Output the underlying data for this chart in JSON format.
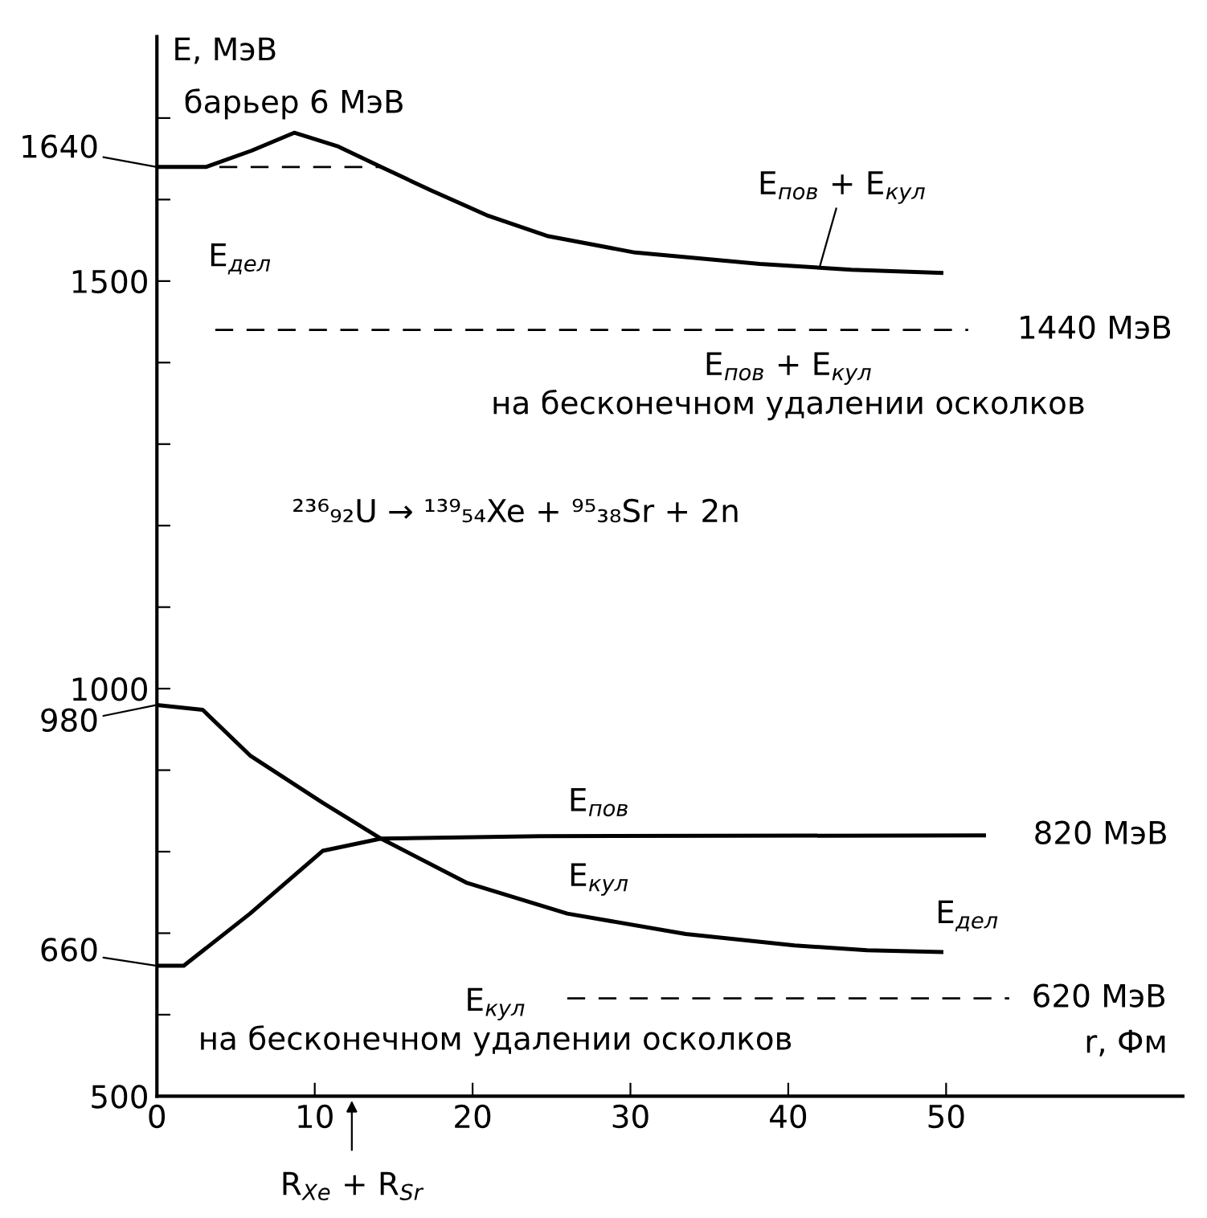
{
  "chart_data": {
    "type": "line",
    "xlabel": "r, Фм",
    "ylabel": "E, МэВ",
    "xlim": [
      0,
      65
    ],
    "xticks": [
      0,
      10,
      20,
      30,
      40,
      50
    ],
    "ylim": [
      500,
      1800
    ],
    "yticks": [
      500,
      {
        "value": 600,
        "label": null
      },
      {
        "value": 700,
        "label": null
      },
      {
        "value": 800,
        "label": null
      },
      {
        "value": 900,
        "label": null
      },
      1000,
      {
        "value": 1100,
        "label": null
      },
      {
        "value": 1200,
        "label": null
      },
      {
        "value": 1300,
        "label": null
      },
      {
        "value": 1400,
        "label": null
      },
      1500,
      {
        "value": 1600,
        "label": null
      },
      {
        "value": 1700,
        "label": null
      }
    ],
    "grid": false,
    "legend": false,
    "marker": "none",
    "series": [
      {
        "color": "#000000",
        "line_style": "solid",
        "x": [
          0,
          3.1,
          6,
          8.7,
          11.5,
          14.2,
          17.4,
          21,
          24.8,
          30.3,
          38.2,
          44,
          49.7
        ],
        "values": [
          1640,
          1640,
          1660,
          1682,
          1665,
          1640,
          1611,
          1580,
          1555,
          1535,
          1521,
          1514,
          1510
        ]
      },
      {
        "color": "#000000",
        "line_style": "dashed",
        "x": [
          0,
          14.2
        ],
        "values": [
          1640,
          1640
        ]
      },
      {
        "color": "#000000",
        "line_style": "dashed",
        "x": [
          3.7,
          51.4
        ],
        "values": [
          1440,
          1440
        ]
      },
      {
        "color": "#000000",
        "line_style": "solid",
        "x": [
          0,
          2.9,
          5.9,
          10.5,
          14.2,
          19.6,
          26,
          33.5,
          40.4,
          45,
          49.7
        ],
        "values": [
          980,
          974,
          918,
          860,
          816,
          762,
          724,
          699,
          685,
          679,
          677
        ]
      },
      {
        "color": "#000000",
        "line_style": "solid",
        "x": [
          0,
          1.7,
          5.9,
          10.5,
          14.2,
          24.3,
          52.4
        ],
        "values": [
          660,
          660,
          724,
          801,
          816,
          819,
          820
        ]
      },
      {
        "color": "#000000",
        "line_style": "dashed",
        "x": [
          26,
          54
        ],
        "values": [
          620,
          620
        ]
      }
    ],
    "annotations": [
      {
        "text": "барьер 6 МэВ",
        "x": 8.7,
        "y": 1682
      },
      {
        "text": "E$_{пов}$ + E$_{кул}$",
        "x": 42,
        "y": 1518
      },
      {
        "text": "1440 МэВ",
        "x": 51.4,
        "y": 1440
      },
      {
        "text": "E$_{пов}$ + E$_{кул}$\nна бесконечном удалении осколков",
        "x": 40,
        "y": 1440
      },
      "E$_{дел}$",
      "²³⁶₉₂U → ¹³⁹₅₄Xe + ⁹⁵₃₈Sr + 2n",
      {
        "text": "1640",
        "x": 0,
        "y": 1640
      },
      {
        "text": "980",
        "x": 0,
        "y": 980
      },
      {
        "text": "660",
        "x": 0,
        "y": 660
      },
      {
        "text": "E$_{пов}$",
        "x": 28,
        "y": 820
      },
      {
        "text": "820 МэВ",
        "x": 52.4,
        "y": 820
      },
      {
        "text": "E$_{кул}$",
        "x": 28,
        "y": 724
      },
      "E$_{дел}$",
      {
        "text": "620 МэВ",
        "x": 54,
        "y": 620
      },
      "E$_{кул}$\nна бесконечном удалении осколков",
      "R$_{Xe}$ + R$_{Sr}$"
    ]
  }
}
